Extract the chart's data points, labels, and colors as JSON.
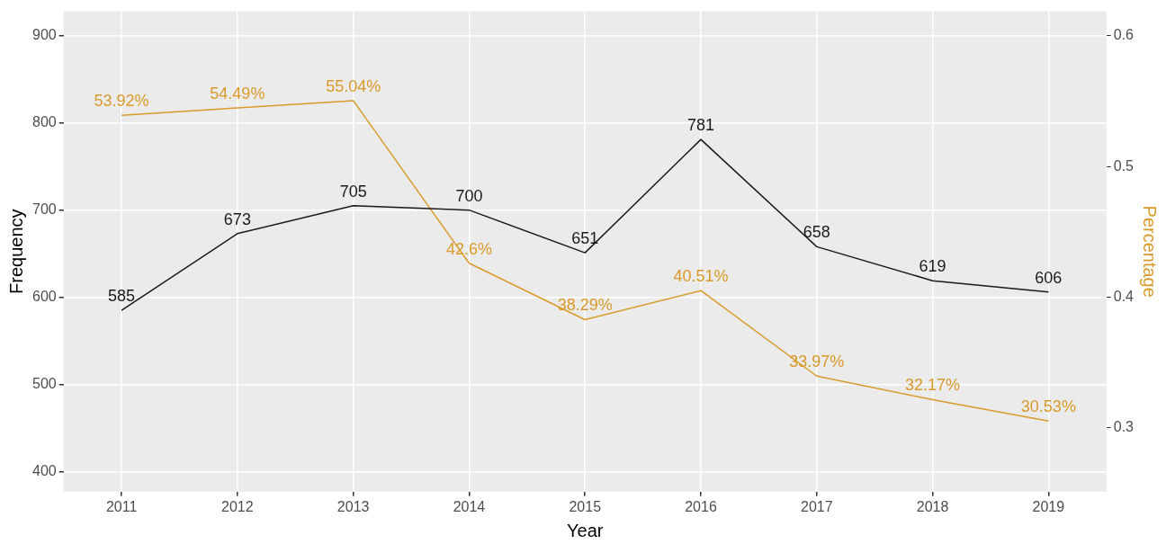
{
  "chart_data": {
    "type": "line",
    "xlabel": "Year",
    "ylabel": "Frequency",
    "y2label": "Percentage",
    "categories": [
      "2011",
      "2012",
      "2013",
      "2014",
      "2015",
      "2016",
      "2017",
      "2018",
      "2019"
    ],
    "series": [
      {
        "color": "#1a1a1a",
        "values": [
          585,
          673,
          705,
          700,
          651,
          781,
          658,
          619,
          606
        ],
        "value_labels": [
          "585",
          "673",
          "705",
          "700",
          "651",
          "781",
          "658",
          "619",
          "606"
        ]
      },
      {
        "color": "#d99a2b",
        "axis": "y2",
        "values": [
          0.5392,
          0.5449,
          0.5504,
          0.426,
          0.3829,
          0.4051,
          0.3397,
          0.3217,
          0.3053
        ],
        "value_labels": [
          "53.92%",
          "54.49%",
          "55.04%",
          "42.6%",
          "38.29%",
          "40.51%",
          "33.97%",
          "32.17%",
          "30.53%"
        ]
      }
    ],
    "ylim": [
      377,
      928
    ],
    "yticks": [
      400,
      500,
      600,
      700,
      800,
      900
    ],
    "y2lim": [
      0.2513,
      0.6187
    ],
    "y2ticks": [
      0.3,
      0.4,
      0.5,
      0.6
    ],
    "grid": true,
    "legend": false,
    "marker": "none",
    "line_style": "solid"
  }
}
